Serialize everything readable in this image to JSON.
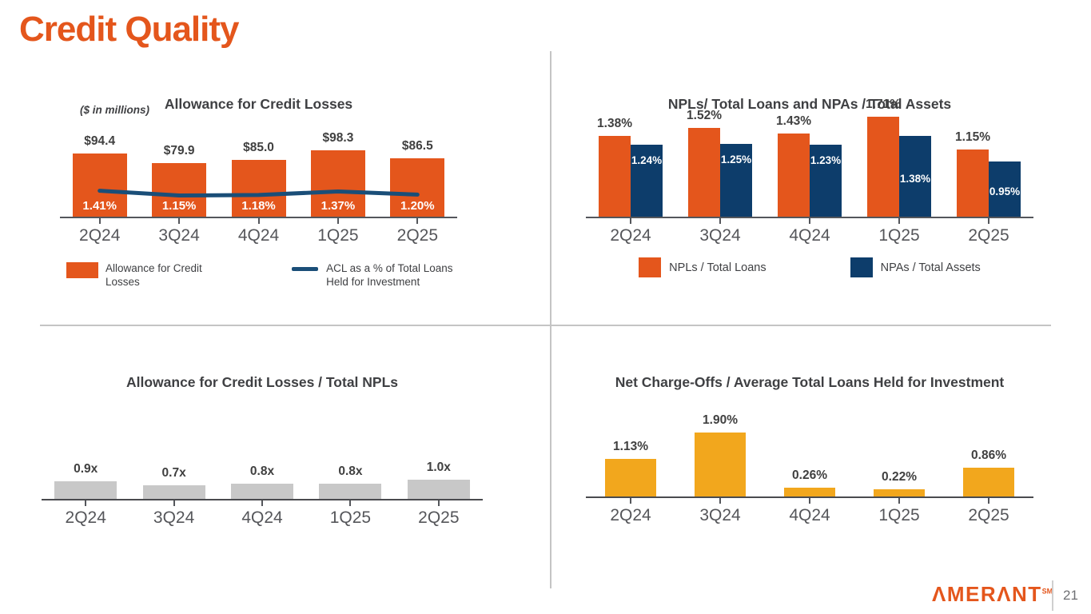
{
  "slide": {
    "title": "Credit Quality",
    "page_number": "21",
    "brand": {
      "logo_text": "ΛMERΛNT",
      "logo_sup": "SM",
      "color": "#E4561C"
    }
  },
  "colors": {
    "orange": "#E4561C",
    "navy": "#0D3D6B",
    "line_blue": "#1A4E78",
    "gold": "#F2A71D",
    "gray": "#C8C8C8"
  },
  "chart_data": [
    {
      "id": "acl",
      "type": "bar",
      "title": "Allowance for Credit Losses",
      "subtitle": "($ in millions)",
      "categories": [
        "2Q24",
        "3Q24",
        "4Q24",
        "1Q25",
        "2Q25"
      ],
      "series": [
        {
          "name": "Allowance for Credit Losses",
          "type": "bar",
          "color": "#E4561C",
          "values": [
            94.4,
            79.9,
            85.0,
            98.3,
            86.5
          ],
          "labels": [
            "$94.4",
            "$79.9",
            "$85.0",
            "$98.3",
            "$86.5"
          ]
        },
        {
          "name": "ACL as a % of Total Loans Held for Investment",
          "type": "line",
          "color": "#1A4E78",
          "values": [
            1.41,
            1.15,
            1.18,
            1.37,
            1.2
          ],
          "labels": [
            "1.41%",
            "1.15%",
            "1.18%",
            "1.37%",
            "1.20%"
          ]
        }
      ],
      "legend_position": "bottom",
      "grid": false
    },
    {
      "id": "nplnpa",
      "type": "bar",
      "title": "NPLs/ Total Loans and NPAs / Total Assets",
      "categories": [
        "2Q24",
        "3Q24",
        "4Q24",
        "1Q25",
        "2Q25"
      ],
      "series": [
        {
          "name": "NPLs / Total Loans",
          "type": "bar",
          "color": "#E4561C",
          "values": [
            1.38,
            1.52,
            1.43,
            1.71,
            1.15
          ],
          "labels": [
            "1.38%",
            "1.52%",
            "1.43%",
            "1.71%",
            "1.15%"
          ]
        },
        {
          "name": "NPAs / Total Assets",
          "type": "bar",
          "color": "#0D3D6B",
          "values": [
            1.24,
            1.25,
            1.23,
            1.38,
            0.95
          ],
          "labels": [
            "1.24%",
            "1.25%",
            "1.23%",
            "1.38%",
            "0.95%"
          ]
        }
      ],
      "legend_position": "bottom",
      "grid": false
    },
    {
      "id": "aclnpl",
      "type": "bar",
      "title": "Allowance for Credit Losses / Total NPLs",
      "categories": [
        "2Q24",
        "3Q24",
        "4Q24",
        "1Q25",
        "2Q25"
      ],
      "series": [
        {
          "name": "Allowance for Credit Losses / Total NPLs",
          "type": "bar",
          "color": "#C8C8C8",
          "values": [
            0.9,
            0.7,
            0.8,
            0.8,
            1.0
          ],
          "labels": [
            "0.9x",
            "0.7x",
            "0.8x",
            "0.8x",
            "1.0x"
          ]
        }
      ],
      "legend_position": "none",
      "grid": false
    },
    {
      "id": "nco",
      "type": "bar",
      "title": "Net Charge-Offs / Average Total Loans Held for Investment",
      "categories": [
        "2Q24",
        "3Q24",
        "4Q24",
        "1Q25",
        "2Q25"
      ],
      "series": [
        {
          "name": "Net Charge-Offs / Average Total Loans Held for Investment",
          "type": "bar",
          "color": "#F2A71D",
          "values": [
            1.13,
            1.9,
            0.26,
            0.22,
            0.86
          ],
          "labels": [
            "1.13%",
            "1.90%",
            "0.26%",
            "0.22%",
            "0.86%"
          ]
        }
      ],
      "legend_position": "none",
      "grid": false
    }
  ]
}
